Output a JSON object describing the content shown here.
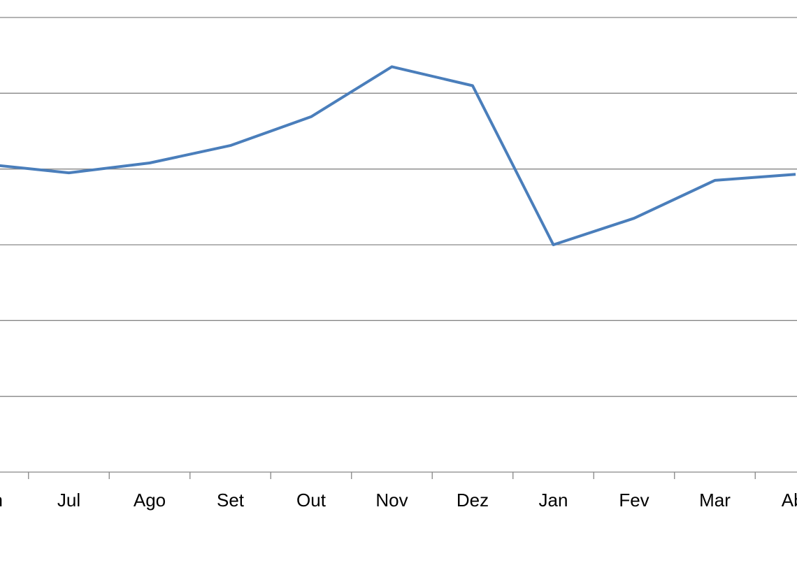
{
  "chart_data": {
    "type": "line",
    "categories": [
      "Jun",
      "Jul",
      "Ago",
      "Set",
      "Out",
      "Nov",
      "Dez",
      "Jan",
      "Fev",
      "Mar",
      "Abr"
    ],
    "series": [
      {
        "color": "#4a7ebb",
        "values": [
          4.06,
          3.95,
          4.08,
          4.31,
          4.69,
          5.35,
          5.1,
          3.0,
          3.35,
          3.85,
          3.93
        ]
      }
    ],
    "ylim": [
      0,
      6
    ],
    "yticks": [
      0,
      1,
      2,
      3,
      4,
      5,
      6
    ],
    "grid": true
  }
}
